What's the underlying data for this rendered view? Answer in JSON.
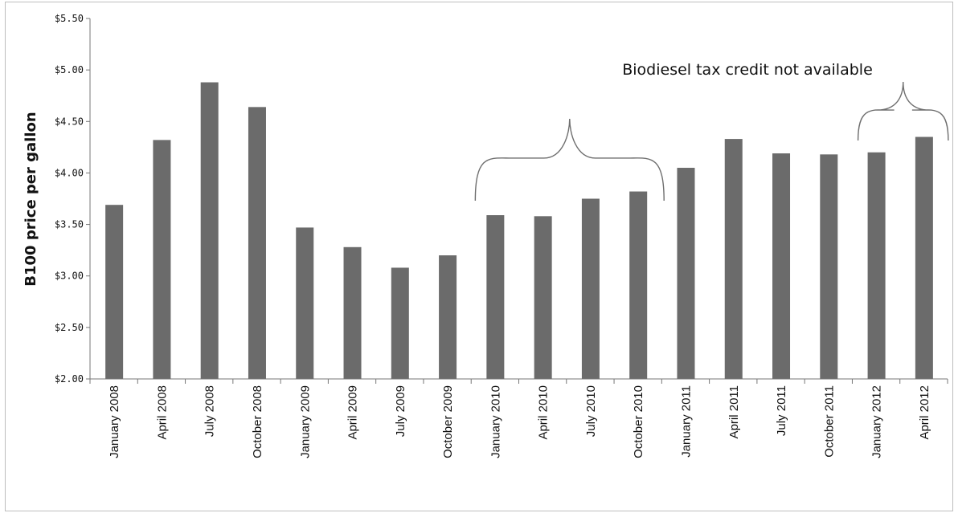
{
  "chart_data": {
    "type": "bar",
    "title": "",
    "xlabel": "",
    "ylabel": "B100 price per gallon",
    "ylim": [
      2.0,
      5.5
    ],
    "yticks": [
      2.0,
      2.5,
      3.0,
      3.5,
      4.0,
      4.5,
      5.0,
      5.5
    ],
    "ytick_labels": [
      "$2.00",
      "$2.50",
      "$3.00",
      "$3.50",
      "$4.00",
      "$4.50",
      "$5.00",
      "$5.50"
    ],
    "grid": false,
    "legend": "none",
    "categories": [
      "January 2008",
      "April 2008",
      "July 2008",
      "October 2008",
      "January 2009",
      "April 2009",
      "July 2009",
      "October 2009",
      "January 2010",
      "April 2010",
      "July 2010",
      "October 2010",
      "January 2011",
      "April 2011",
      "July 2011",
      "October 2011",
      "January 2012",
      "April 2012"
    ],
    "values": [
      3.69,
      4.32,
      4.88,
      4.64,
      3.47,
      3.28,
      3.08,
      3.2,
      3.59,
      3.58,
      3.75,
      3.82,
      4.05,
      4.33,
      4.19,
      4.18,
      4.2,
      4.35
    ],
    "bar_color": "#6b6b6b",
    "annotation": "Biodiesel tax credit not available",
    "annotation_ranges": [
      [
        "January 2010",
        "October 2010"
      ],
      [
        "January 2012",
        "April 2012"
      ]
    ]
  }
}
